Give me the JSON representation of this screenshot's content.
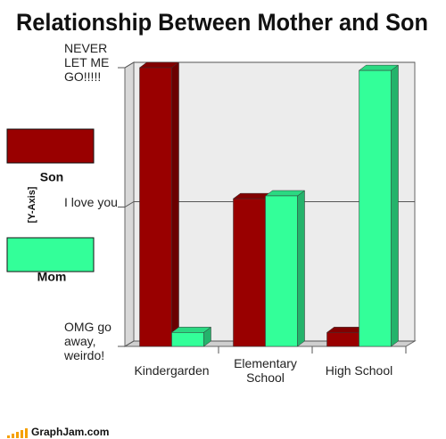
{
  "chart_data": {
    "type": "bar",
    "title": "Relationship Between Mother and Son",
    "y_label": "[Y-Axis]",
    "categories": [
      "Kindergarden",
      "Elementary School",
      "High School"
    ],
    "series": [
      {
        "name": "Son",
        "color": "#990000",
        "values": [
          100,
          53,
          5
        ]
      },
      {
        "name": "Mom",
        "color": "#33ff99",
        "values": [
          5,
          54,
          99
        ]
      }
    ],
    "ylim": [
      0,
      100
    ],
    "yticks": [
      {
        "value": 0,
        "label": "OMG go away, weirdo!"
      },
      {
        "value": 50,
        "label": "I love you"
      },
      {
        "value": 100,
        "label": "NEVER LET ME GO!!!!!"
      }
    ],
    "grid": true,
    "source": "GraphJam.com"
  }
}
